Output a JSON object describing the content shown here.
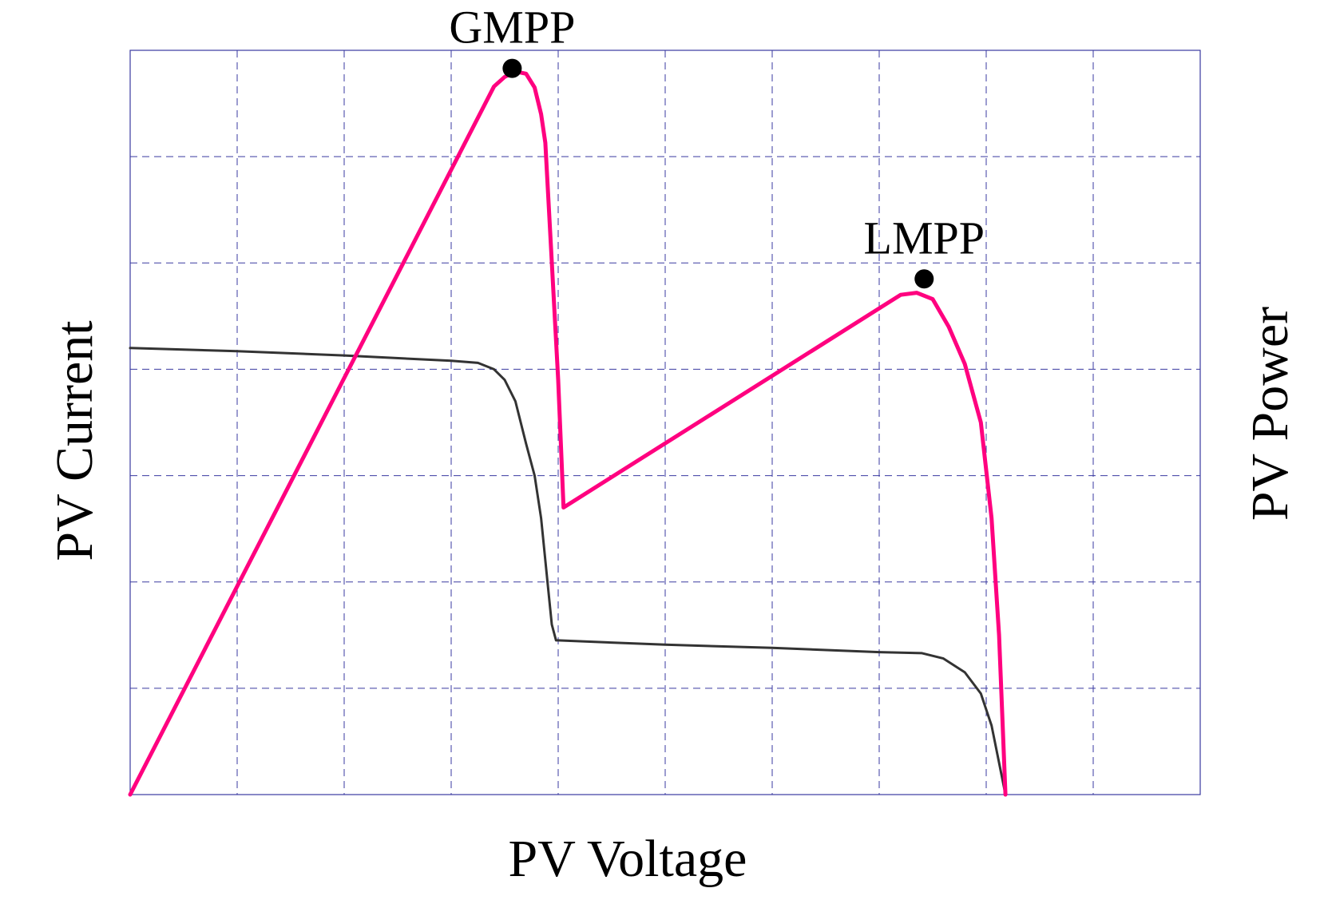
{
  "chart_data": {
    "type": "line",
    "title": "",
    "xlabel": "PV Voltage",
    "ylabel_left": "PV Current",
    "ylabel_right": "PV Power",
    "xlim": [
      0,
      10
    ],
    "ylim_current": [
      0,
      7
    ],
    "ylim_power": [
      0,
      7
    ],
    "ticks_labeled": false,
    "grid": true,
    "grid_style": "dashed",
    "x_grid_count": 10,
    "y_grid_count": 7,
    "series": [
      {
        "role": "current",
        "color": "#333333",
        "axis": "left",
        "points": [
          [
            0,
            4.2
          ],
          [
            1.0,
            4.17
          ],
          [
            2.0,
            4.13
          ],
          [
            3.0,
            4.08
          ],
          [
            3.25,
            4.06
          ],
          [
            3.4,
            4.0
          ],
          [
            3.5,
            3.9
          ],
          [
            3.6,
            3.7
          ],
          [
            3.7,
            3.3
          ],
          [
            3.78,
            3.0
          ],
          [
            3.84,
            2.6
          ],
          [
            3.9,
            2.0
          ],
          [
            3.94,
            1.6
          ],
          [
            3.98,
            1.45
          ],
          [
            4.0,
            1.45
          ],
          [
            5.0,
            1.41
          ],
          [
            6.0,
            1.38
          ],
          [
            7.0,
            1.34
          ],
          [
            7.4,
            1.33
          ],
          [
            7.6,
            1.28
          ],
          [
            7.8,
            1.15
          ],
          [
            7.95,
            0.95
          ],
          [
            8.05,
            0.65
          ],
          [
            8.12,
            0.3
          ],
          [
            8.18,
            0.0
          ]
        ]
      },
      {
        "role": "power",
        "color": "#FF007F",
        "axis": "right",
        "points": [
          [
            0,
            0.0
          ],
          [
            3.4,
            6.66
          ],
          [
            3.5,
            6.75
          ],
          [
            3.6,
            6.8
          ],
          [
            3.7,
            6.78
          ],
          [
            3.78,
            6.65
          ],
          [
            3.84,
            6.4
          ],
          [
            3.88,
            6.13
          ],
          [
            4.0,
            3.9
          ],
          [
            4.05,
            2.7
          ],
          [
            7.2,
            4.7
          ],
          [
            7.35,
            4.72
          ],
          [
            7.5,
            4.66
          ],
          [
            7.65,
            4.4
          ],
          [
            7.8,
            4.05
          ],
          [
            7.95,
            3.5
          ],
          [
            8.05,
            2.6
          ],
          [
            8.12,
            1.5
          ],
          [
            8.18,
            0.0
          ]
        ]
      }
    ],
    "annotations": [
      {
        "label": "GMPP",
        "x": 3.57,
        "y": 6.83,
        "series": "power"
      },
      {
        "label": "LMPP",
        "x": 7.42,
        "y": 4.85,
        "series": "power"
      }
    ]
  }
}
